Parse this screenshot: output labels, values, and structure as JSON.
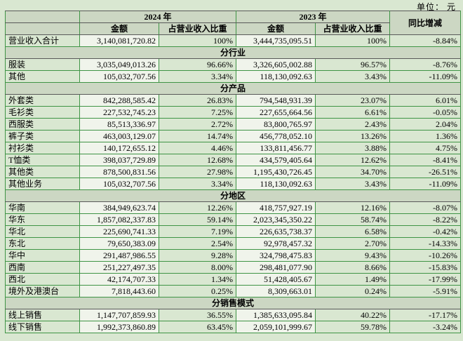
{
  "unit_label": "单位： 元",
  "table": {
    "header": {
      "year_2024": "2024 年",
      "year_2023": "2023 年",
      "amount": "金额",
      "pct_of_revenue": "占营业收入比重",
      "yoy_change": "同比增减"
    },
    "rows": [
      {
        "type": "data",
        "label": "营业收入合计",
        "a24": "3,140,081,720.82",
        "p24": "100%",
        "a23": "3,444,735,095.51",
        "p23": "100%",
        "yoy": "-8.84%"
      },
      {
        "type": "section",
        "label": "分行业"
      },
      {
        "type": "data",
        "label": "服装",
        "a24": "3,035,049,013.26",
        "p24": "96.66%",
        "a23": "3,326,605,002.88",
        "p23": "96.57%",
        "yoy": "-8.76%"
      },
      {
        "type": "data",
        "label": "其他",
        "a24": "105,032,707.56",
        "p24": "3.34%",
        "a23": "118,130,092.63",
        "p23": "3.43%",
        "yoy": "-11.09%"
      },
      {
        "type": "section",
        "label": "分产品"
      },
      {
        "type": "data",
        "label": "外套类",
        "a24": "842,288,585.42",
        "p24": "26.83%",
        "a23": "794,548,931.39",
        "p23": "23.07%",
        "yoy": "6.01%"
      },
      {
        "type": "data",
        "label": "毛衫类",
        "a24": "227,532,745.23",
        "p24": "7.25%",
        "a23": "227,655,664.56",
        "p23": "6.61%",
        "yoy": "-0.05%"
      },
      {
        "type": "data",
        "label": "西服类",
        "a24": "85,513,336.97",
        "p24": "2.72%",
        "a23": "83,800,765.97",
        "p23": "2.43%",
        "yoy": "2.04%"
      },
      {
        "type": "data",
        "label": "裤子类",
        "a24": "463,003,129.07",
        "p24": "14.74%",
        "a23": "456,778,052.10",
        "p23": "13.26%",
        "yoy": "1.36%"
      },
      {
        "type": "data",
        "label": "衬衫类",
        "a24": "140,172,655.12",
        "p24": "4.46%",
        "a23": "133,811,456.77",
        "p23": "3.88%",
        "yoy": "4.75%"
      },
      {
        "type": "data",
        "label": "T恤类",
        "a24": "398,037,729.89",
        "p24": "12.68%",
        "a23": "434,579,405.64",
        "p23": "12.62%",
        "yoy": "-8.41%"
      },
      {
        "type": "data",
        "label": "其他类",
        "a24": "878,500,831.56",
        "p24": "27.98%",
        "a23": "1,195,430,726.45",
        "p23": "34.70%",
        "yoy": "-26.51%"
      },
      {
        "type": "data",
        "label": "其他业务",
        "a24": "105,032,707.56",
        "p24": "3.34%",
        "a23": "118,130,092.63",
        "p23": "3.43%",
        "yoy": "-11.09%"
      },
      {
        "type": "section",
        "label": "分地区"
      },
      {
        "type": "data",
        "label": "华南",
        "a24": "384,949,623.74",
        "p24": "12.26%",
        "a23": "418,757,927.19",
        "p23": "12.16%",
        "yoy": "-8.07%"
      },
      {
        "type": "data",
        "label": "华东",
        "a24": "1,857,082,337.83",
        "p24": "59.14%",
        "a23": "2,023,345,350.22",
        "p23": "58.74%",
        "yoy": "-8.22%"
      },
      {
        "type": "data",
        "label": "华北",
        "a24": "225,690,741.33",
        "p24": "7.19%",
        "a23": "226,635,738.37",
        "p23": "6.58%",
        "yoy": "-0.42%"
      },
      {
        "type": "data",
        "label": "东北",
        "a24": "79,650,383.09",
        "p24": "2.54%",
        "a23": "92,978,457.32",
        "p23": "2.70%",
        "yoy": "-14.33%"
      },
      {
        "type": "data",
        "label": "华中",
        "a24": "291,487,986.55",
        "p24": "9.28%",
        "a23": "324,798,475.83",
        "p23": "9.43%",
        "yoy": "-10.26%"
      },
      {
        "type": "data",
        "label": "西南",
        "a24": "251,227,497.35",
        "p24": "8.00%",
        "a23": "298,481,077.90",
        "p23": "8.66%",
        "yoy": "-15.83%"
      },
      {
        "type": "data",
        "label": "西北",
        "a24": "42,174,707.33",
        "p24": "1.34%",
        "a23": "51,428,405.67",
        "p23": "1.49%",
        "yoy": "-17.99%"
      },
      {
        "type": "data",
        "label": "境外及港澳台",
        "a24": "7,818,443.60",
        "p24": "0.25%",
        "a23": "8,309,663.01",
        "p23": "0.24%",
        "yoy": "-5.91%"
      },
      {
        "type": "section",
        "label": "分销售模式"
      },
      {
        "type": "data",
        "label": "线上销售",
        "a24": "1,147,707,859.93",
        "p24": "36.55%",
        "a23": "1,385,633,095.84",
        "p23": "40.22%",
        "yoy": "-17.17%"
      },
      {
        "type": "data",
        "label": "线下销售",
        "a24": "1,992,373,860.89",
        "p24": "63.45%",
        "a23": "2,059,101,999.67",
        "p23": "59.78%",
        "yoy": "-3.24%"
      }
    ]
  }
}
